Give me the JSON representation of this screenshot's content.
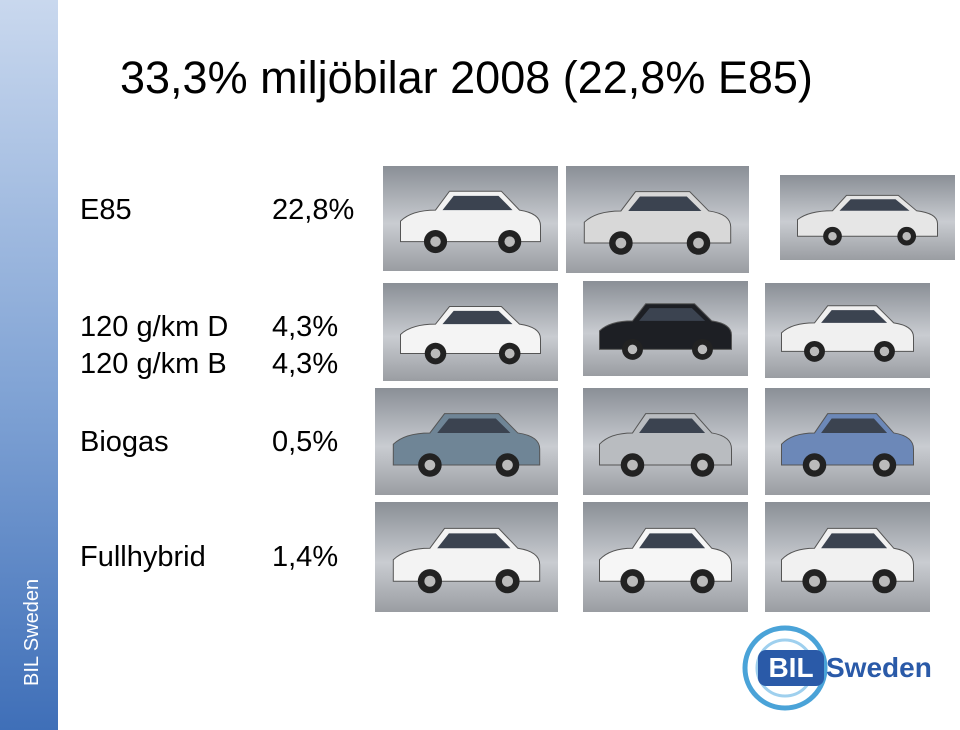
{
  "title": "33,3% miljöbilar 2008 (22,8% E85)",
  "rows": [
    {
      "label": "E85",
      "value": "22,8%"
    },
    {
      "label": "120 g/km D",
      "value": "4,3%"
    },
    {
      "label": "120 g/km B",
      "value": "4,3%"
    },
    {
      "label": "Biogas",
      "value": "0,5%"
    },
    {
      "label": "Fullhybrid",
      "value": "1,4%"
    }
  ],
  "sidebar": "BIL Sweden",
  "logo": {
    "left": "BIL",
    "right": "Sweden"
  }
}
